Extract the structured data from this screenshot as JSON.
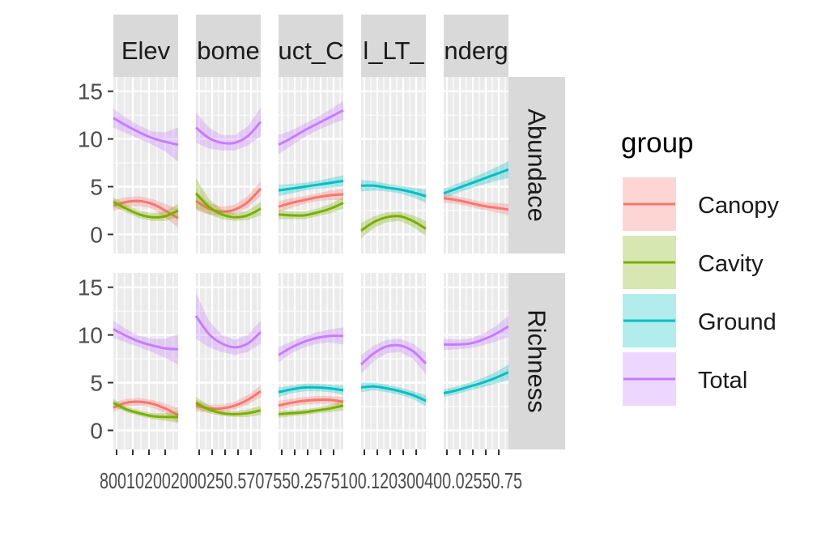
{
  "chart_data": {
    "type": "line",
    "facet_columns": [
      "Elev",
      "bome",
      "uct_C",
      "l_LT_",
      "nderg"
    ],
    "facet_rows": [
      "Abundace",
      "Richness"
    ],
    "y_axis": {
      "ticks": [
        0,
        5,
        10,
        15
      ],
      "ylim": [
        -2,
        16.5
      ]
    },
    "x_tick_labels": [
      [
        "800",
        "1000",
        "1200"
      ],
      [
        "0.00",
        "0.25",
        "0.50",
        "0.75"
      ],
      [
        "0.25",
        "0.50",
        "0.75",
        "1.00"
      ],
      [
        "0.1",
        "0.2",
        "0.3",
        "0.4"
      ],
      [
        "0.00",
        "0.25",
        "0.50",
        "0.75"
      ]
    ],
    "x_tick_text_visible": "800102002000250.5707550.2575100.120300400.02550.75",
    "grid": true,
    "legend": {
      "title": "group",
      "placement": "right",
      "entries": [
        {
          "label": "Canopy",
          "color": "#F8766D"
        },
        {
          "label": "Cavity",
          "color": "#7CAE00"
        },
        {
          "label": "Ground",
          "color": "#00BFC4"
        },
        {
          "label": "Total",
          "color": "#C77CFF"
        }
      ]
    },
    "series_colors": {
      "Canopy": "#F8766D",
      "Cavity": "#7CAE00",
      "Ground": "#00BFC4",
      "Total": "#C77CFF"
    },
    "panels": [
      {
        "row": 0,
        "col": 0,
        "series": [
          {
            "group": "Total",
            "y": [
              12.2,
              11.4,
              10.7,
              10.1,
              9.7,
              9.4
            ],
            "band": [
              1.0,
              0.8,
              0.7,
              0.7,
              1.0,
              1.8
            ]
          },
          {
            "group": "Canopy",
            "y": [
              3.0,
              3.4,
              3.5,
              3.2,
              2.5,
              1.7
            ],
            "band": [
              0.6,
              0.5,
              0.5,
              0.5,
              0.7,
              1.0
            ]
          },
          {
            "group": "Cavity",
            "y": [
              3.4,
              2.7,
              2.1,
              1.8,
              1.9,
              2.5
            ],
            "band": [
              0.5,
              0.4,
              0.4,
              0.4,
              0.5,
              0.7
            ]
          }
        ]
      },
      {
        "row": 0,
        "col": 1,
        "series": [
          {
            "group": "Total",
            "y": [
              11.2,
              10.1,
              9.6,
              9.6,
              10.3,
              11.8
            ],
            "band": [
              1.6,
              1.1,
              0.8,
              0.8,
              1.0,
              1.5
            ]
          },
          {
            "group": "Canopy",
            "y": [
              3.5,
              2.7,
              2.4,
              2.6,
              3.4,
              4.8
            ],
            "band": [
              1.0,
              0.6,
              0.5,
              0.5,
              0.6,
              0.8
            ]
          },
          {
            "group": "Cavity",
            "y": [
              4.3,
              2.9,
              2.1,
              1.8,
              2.0,
              2.7
            ],
            "band": [
              1.6,
              0.8,
              0.5,
              0.4,
              0.5,
              0.7
            ]
          }
        ]
      },
      {
        "row": 0,
        "col": 2,
        "series": [
          {
            "group": "Total",
            "y": [
              9.4,
              10.1,
              10.9,
              11.6,
              12.3,
              13.0
            ],
            "band": [
              1.0,
              0.8,
              0.7,
              0.7,
              0.8,
              1.0
            ]
          },
          {
            "group": "Ground",
            "y": [
              4.6,
              4.8,
              5.0,
              5.2,
              5.4,
              5.6
            ],
            "band": [
              0.6,
              0.5,
              0.4,
              0.4,
              0.5,
              0.6
            ]
          },
          {
            "group": "Canopy",
            "y": [
              2.9,
              3.3,
              3.6,
              3.9,
              4.1,
              4.2
            ],
            "band": [
              0.6,
              0.5,
              0.4,
              0.4,
              0.5,
              0.6
            ]
          },
          {
            "group": "Cavity",
            "y": [
              2.1,
              2.0,
              2.0,
              2.3,
              2.7,
              3.3
            ],
            "band": [
              0.5,
              0.4,
              0.4,
              0.4,
              0.5,
              0.6
            ]
          }
        ]
      },
      {
        "row": 0,
        "col": 3,
        "series": [
          {
            "group": "Ground",
            "y": [
              5.1,
              5.1,
              4.9,
              4.7,
              4.4,
              4.0
            ],
            "band": [
              0.6,
              0.5,
              0.4,
              0.4,
              0.5,
              0.7
            ]
          },
          {
            "group": "Cavity",
            "y": [
              0.4,
              1.3,
              1.8,
              1.9,
              1.4,
              0.6
            ],
            "band": [
              0.8,
              0.6,
              0.5,
              0.5,
              0.6,
              0.8
            ]
          }
        ]
      },
      {
        "row": 0,
        "col": 4,
        "series": [
          {
            "group": "Ground",
            "y": [
              4.3,
              4.8,
              5.3,
              5.8,
              6.3,
              6.8
            ],
            "band": [
              0.5,
              0.5,
              0.5,
              0.6,
              0.7,
              0.9
            ]
          },
          {
            "group": "Canopy",
            "y": [
              3.8,
              3.6,
              3.3,
              3.0,
              2.8,
              2.6
            ],
            "band": [
              0.5,
              0.4,
              0.4,
              0.4,
              0.5,
              0.6
            ]
          }
        ]
      },
      {
        "row": 1,
        "col": 0,
        "series": [
          {
            "group": "Total",
            "y": [
              10.6,
              9.9,
              9.3,
              8.9,
              8.6,
              8.5
            ],
            "band": [
              0.9,
              0.7,
              0.6,
              0.7,
              1.0,
              1.6
            ]
          },
          {
            "group": "Canopy",
            "y": [
              2.4,
              2.9,
              3.0,
              2.8,
              2.3,
              1.6
            ],
            "band": [
              0.5,
              0.4,
              0.4,
              0.4,
              0.5,
              0.8
            ]
          },
          {
            "group": "Cavity",
            "y": [
              2.9,
              2.2,
              1.8,
              1.5,
              1.4,
              1.4
            ],
            "band": [
              0.4,
              0.3,
              0.3,
              0.3,
              0.4,
              0.6
            ]
          }
        ]
      },
      {
        "row": 1,
        "col": 1,
        "series": [
          {
            "group": "Total",
            "y": [
              12.0,
              10.1,
              9.1,
              8.7,
              9.1,
              10.3
            ],
            "band": [
              2.4,
              1.4,
              0.9,
              0.8,
              0.9,
              1.2
            ]
          },
          {
            "group": "Canopy",
            "y": [
              2.6,
              2.3,
              2.3,
              2.6,
              3.2,
              4.1
            ],
            "band": [
              0.6,
              0.4,
              0.4,
              0.4,
              0.5,
              0.6
            ]
          },
          {
            "group": "Cavity",
            "y": [
              2.9,
              2.2,
              1.8,
              1.7,
              1.8,
              2.1
            ],
            "band": [
              0.6,
              0.4,
              0.3,
              0.3,
              0.4,
              0.5
            ]
          }
        ]
      },
      {
        "row": 1,
        "col": 2,
        "series": [
          {
            "group": "Total",
            "y": [
              7.9,
              8.7,
              9.3,
              9.7,
              9.9,
              9.9
            ],
            "band": [
              0.8,
              0.6,
              0.6,
              0.6,
              0.7,
              0.9
            ]
          },
          {
            "group": "Ground",
            "y": [
              4.0,
              4.3,
              4.5,
              4.5,
              4.4,
              4.2
            ],
            "band": [
              0.5,
              0.4,
              0.4,
              0.4,
              0.4,
              0.5
            ]
          },
          {
            "group": "Canopy",
            "y": [
              2.6,
              2.9,
              3.1,
              3.2,
              3.2,
              3.0
            ],
            "band": [
              0.5,
              0.4,
              0.4,
              0.4,
              0.4,
              0.5
            ]
          },
          {
            "group": "Cavity",
            "y": [
              1.7,
              1.8,
              1.9,
              2.1,
              2.3,
              2.6
            ],
            "band": [
              0.4,
              0.3,
              0.3,
              0.3,
              0.4,
              0.5
            ]
          }
        ]
      },
      {
        "row": 1,
        "col": 3,
        "series": [
          {
            "group": "Total",
            "y": [
              6.9,
              8.1,
              8.8,
              8.9,
              8.3,
              7.0
            ],
            "band": [
              1.0,
              0.8,
              0.7,
              0.7,
              0.8,
              1.1
            ]
          },
          {
            "group": "Ground",
            "y": [
              4.5,
              4.6,
              4.4,
              4.1,
              3.7,
              3.1
            ],
            "band": [
              0.5,
              0.4,
              0.4,
              0.4,
              0.4,
              0.6
            ]
          }
        ]
      },
      {
        "row": 1,
        "col": 4,
        "series": [
          {
            "group": "Total",
            "y": [
              9.0,
              9.0,
              9.1,
              9.5,
              10.1,
              10.9
            ],
            "band": [
              0.6,
              0.5,
              0.5,
              0.6,
              0.8,
              1.1
            ]
          },
          {
            "group": "Ground",
            "y": [
              3.9,
              4.2,
              4.6,
              5.0,
              5.5,
              6.1
            ],
            "band": [
              0.4,
              0.4,
              0.4,
              0.5,
              0.6,
              0.8
            ]
          }
        ]
      }
    ]
  }
}
